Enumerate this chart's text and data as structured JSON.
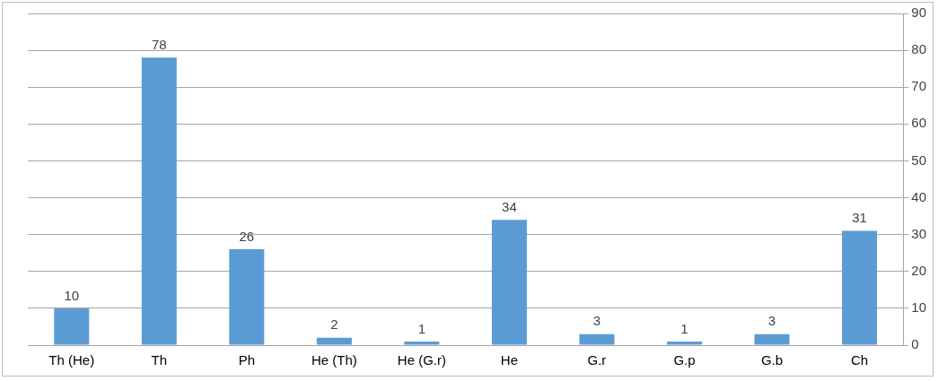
{
  "chart_data": {
    "type": "bar",
    "categories": [
      "Th (He)",
      "Th",
      "Ph",
      "He (Th)",
      "He (G.r)",
      "He",
      "G.r",
      "G.p",
      "G.b",
      "Ch"
    ],
    "values": [
      10,
      78,
      26,
      2,
      1,
      34,
      3,
      1,
      3,
      31
    ],
    "color": "#5b9bd5",
    "ylim": [
      0,
      90
    ],
    "yticks": [
      0,
      10,
      20,
      30,
      40,
      50,
      60,
      70,
      80,
      90
    ],
    "grid": "y",
    "legend": false,
    "data_labels": true
  }
}
